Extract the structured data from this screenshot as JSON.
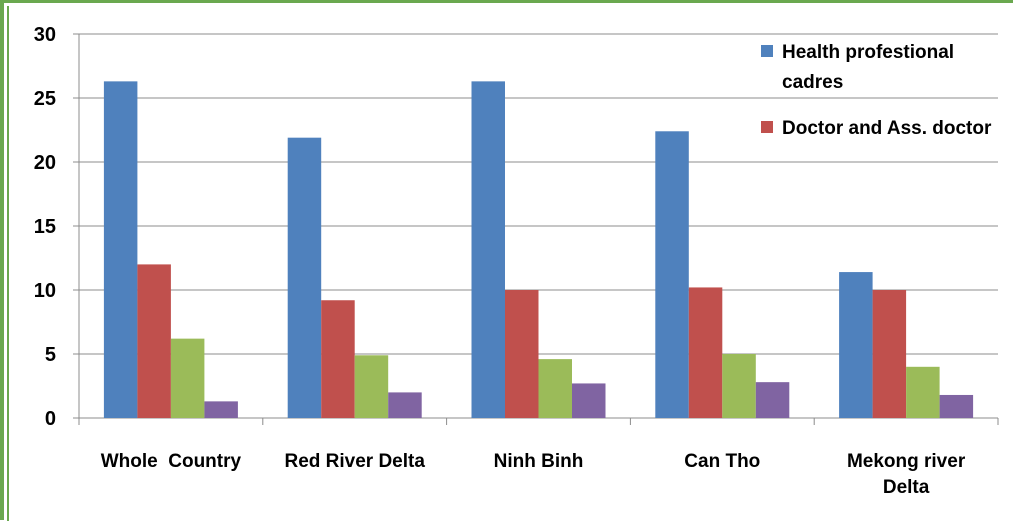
{
  "chart_data": {
    "type": "bar",
    "categories": [
      [
        "Whole  Country"
      ],
      [
        "Red River Delta"
      ],
      [
        "Ninh Binh"
      ],
      [
        "Can Tho"
      ],
      [
        "Mekong river",
        "Delta"
      ]
    ],
    "series": [
      {
        "name": [
          "Health profestional",
          "cadres"
        ],
        "values": [
          26.3,
          21.9,
          26.3,
          22.4,
          11.4
        ]
      },
      {
        "name": [
          "Doctor and Ass. doctor"
        ],
        "values": [
          12.0,
          9.2,
          10.0,
          10.2,
          10.0
        ]
      },
      {
        "name": [],
        "values": [
          6.2,
          4.9,
          4.6,
          5.0,
          4.0
        ]
      },
      {
        "name": [],
        "values": [
          1.3,
          2.0,
          2.7,
          2.8,
          1.8
        ]
      }
    ],
    "colors": [
      "#4f81bd",
      "#c0504d",
      "#9bbb59",
      "#8064a2"
    ],
    "ylim": [
      0,
      30
    ],
    "yticks": [
      0,
      5,
      10,
      15,
      20,
      25,
      30
    ],
    "grid": true,
    "legend": "top-right"
  }
}
